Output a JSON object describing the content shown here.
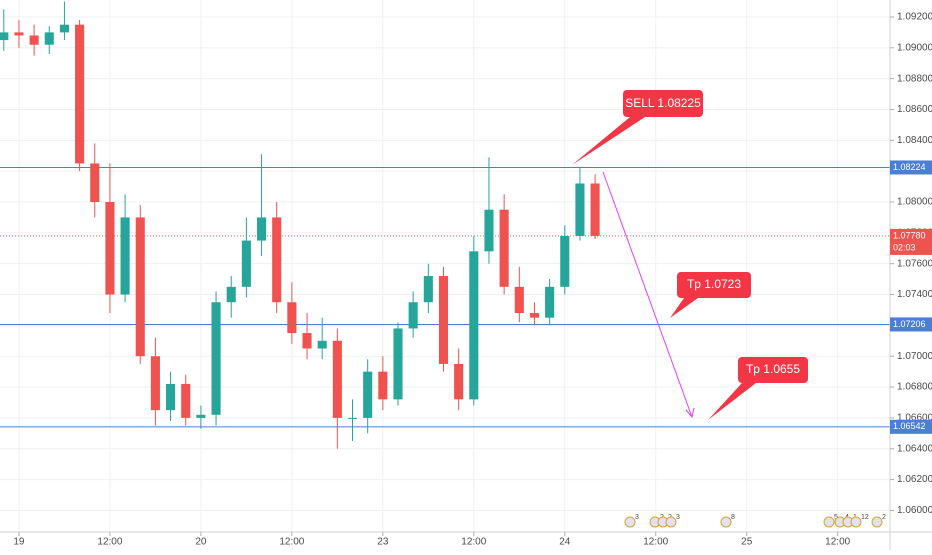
{
  "chart_data": {
    "type": "candlestick",
    "x": [
      -2,
      0,
      2,
      4,
      6,
      8,
      10,
      12,
      14,
      16,
      18,
      20,
      22,
      24,
      26,
      28,
      30,
      32,
      34,
      36,
      38,
      40,
      42,
      44,
      46,
      48,
      50,
      52,
      54,
      56,
      58,
      60,
      62,
      64,
      66,
      68,
      70,
      72,
      74,
      76
    ],
    "open": [
      1.0905,
      1.091,
      1.0908,
      1.0902,
      1.091,
      1.0915,
      1.0825,
      1.08,
      1.074,
      1.079,
      1.07,
      1.0665,
      1.0682,
      1.066,
      1.0662,
      1.0735,
      1.0745,
      1.0775,
      1.079,
      1.0735,
      1.0715,
      1.0705,
      1.071,
      1.066,
      1.066,
      1.069,
      1.0672,
      1.0718,
      1.0735,
      1.0752,
      1.0695,
      1.0672,
      1.0768,
      1.0795,
      1.0745,
      1.0728,
      1.0725,
      1.0745,
      1.0778,
      1.0812
    ],
    "high": [
      1.0925,
      1.0918,
      1.0915,
      1.0914,
      1.093,
      1.0918,
      1.0838,
      1.0825,
      1.0805,
      1.0798,
      1.0712,
      1.069,
      1.0688,
      1.0668,
      1.0742,
      1.0752,
      1.079,
      1.0831,
      1.08,
      1.0748,
      1.0728,
      1.0725,
      1.0718,
      1.0672,
      1.0698,
      1.07,
      1.0722,
      1.0742,
      1.076,
      1.0758,
      1.0705,
      1.0778,
      1.0829,
      1.0805,
      1.0758,
      1.0735,
      1.075,
      1.0785,
      1.0822,
      1.0818
    ],
    "low": [
      1.0898,
      1.09,
      1.0895,
      1.0896,
      1.0905,
      1.082,
      1.079,
      1.0728,
      1.0735,
      1.0695,
      1.0655,
      1.0658,
      1.0655,
      1.0653,
      1.0655,
      1.0725,
      1.0738,
      1.0765,
      1.0728,
      1.0708,
      1.0698,
      1.0698,
      1.064,
      1.0645,
      1.065,
      1.0665,
      1.0668,
      1.0712,
      1.0728,
      1.069,
      1.0665,
      1.0668,
      1.076,
      1.074,
      1.0722,
      1.072,
      1.072,
      1.074,
      1.0775,
      1.0776
    ],
    "close": [
      1.091,
      1.0908,
      1.0902,
      1.091,
      1.0915,
      1.0825,
      1.08,
      1.074,
      1.079,
      1.07,
      1.0665,
      1.0682,
      1.066,
      1.0662,
      1.0735,
      1.0745,
      1.0775,
      1.079,
      1.0735,
      1.0715,
      1.0705,
      1.071,
      1.066,
      1.066,
      1.069,
      1.0672,
      1.0718,
      1.0735,
      1.0752,
      1.0695,
      1.0672,
      1.0768,
      1.0795,
      1.0745,
      1.0728,
      1.0725,
      1.0745,
      1.0778,
      1.0812,
      1.0778
    ],
    "up_color": "#26a69a",
    "down_color": "#ef5350",
    "xlim": [
      -2.5,
      114.9
    ],
    "ylim": [
      1.0586,
      1.0931
    ],
    "xticks": [
      {
        "value": 0,
        "label": "19"
      },
      {
        "value": 12,
        "label": "12:00"
      },
      {
        "value": 24,
        "label": "20"
      },
      {
        "value": 36,
        "label": "12:00"
      },
      {
        "value": 48,
        "label": "23"
      },
      {
        "value": 60,
        "label": "12:00"
      },
      {
        "value": 72,
        "label": "24"
      },
      {
        "value": 84,
        "label": "12:00"
      },
      {
        "value": 96,
        "label": "25"
      },
      {
        "value": 108,
        "label": "12:00"
      }
    ],
    "yticks": [
      {
        "value": 1.06,
        "label": "1.06000"
      },
      {
        "value": 1.062,
        "label": "1.06200"
      },
      {
        "value": 1.064,
        "label": "1.06400"
      },
      {
        "value": 1.066,
        "label": "1.06600"
      },
      {
        "value": 1.068,
        "label": "1.06800"
      },
      {
        "value": 1.07,
        "label": "1.07000"
      },
      {
        "value": 1.072,
        "label": "1.07200"
      },
      {
        "value": 1.074,
        "label": "1.07400"
      },
      {
        "value": 1.076,
        "label": "1.07600"
      },
      {
        "value": 1.078,
        "label": "1.07800"
      },
      {
        "value": 1.08,
        "label": "1.08000"
      },
      {
        "value": 1.082,
        "label": "1.08200"
      },
      {
        "value": 1.084,
        "label": "1.08400"
      },
      {
        "value": 1.086,
        "label": "1.08600"
      },
      {
        "value": 1.088,
        "label": "1.08800"
      },
      {
        "value": 1.09,
        "label": "1.09000"
      },
      {
        "value": 1.092,
        "label": "1.09200"
      }
    ],
    "grid": true,
    "price_lines": [
      {
        "value": 1.08224,
        "color": "#4a7fd4"
      },
      {
        "value": 1.07206,
        "color": "#4a7fd4"
      },
      {
        "value": 1.06542,
        "color": "#4a7fd4"
      }
    ],
    "current_price": {
      "value": 1.0778,
      "label": "1.07780",
      "countdown": "02:03",
      "color": "#ef5350"
    },
    "annotations": [
      "SELL 1.08225",
      "Tp 1.0723",
      "Tp 1.0655"
    ],
    "events": [
      "3",
      "2",
      "2",
      "3",
      "8",
      "5",
      "4",
      "1",
      "12",
      "2"
    ]
  }
}
